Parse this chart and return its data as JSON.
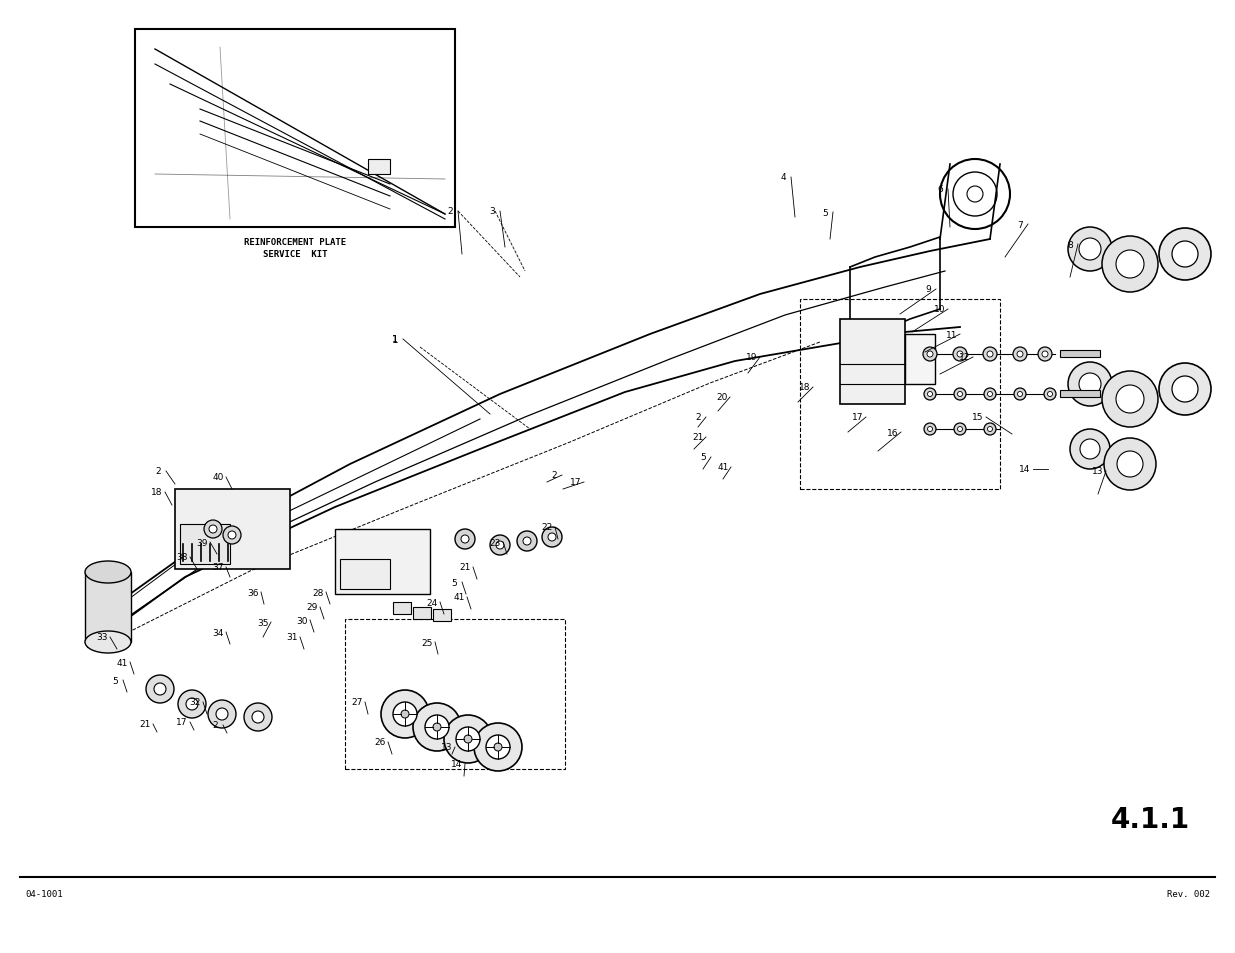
{
  "bg_color": "#ffffff",
  "line_color": "#000000",
  "footer_left": "04-1001",
  "footer_right": "Rev. 002",
  "page_num": "4.1.1",
  "figsize": [
    12.35,
    9.54
  ],
  "dpi": 100
}
